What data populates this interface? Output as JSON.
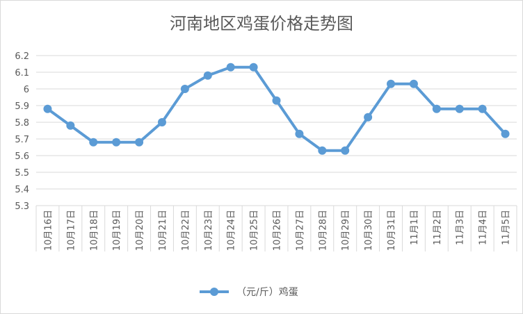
{
  "chart_data": {
    "type": "line",
    "title": "河南地区鸡蛋价格走势图",
    "categories": [
      "10月16日",
      "10月17日",
      "10月18日",
      "10月19日",
      "10月20日",
      "10月21日",
      "10月22日",
      "10月23日",
      "10月24日",
      "10月25日",
      "10月26日",
      "10月27日",
      "10月28日",
      "10月29日",
      "10月30日",
      "10月31日",
      "11月1日",
      "11月2日",
      "11月3日",
      "11月4日",
      "11月5日"
    ],
    "series": [
      {
        "name": "（元/斤）鸡蛋",
        "values": [
          5.88,
          5.78,
          5.68,
          5.68,
          5.68,
          5.8,
          6.0,
          6.08,
          6.13,
          6.13,
          5.93,
          5.73,
          5.63,
          5.63,
          5.83,
          6.03,
          6.03,
          5.88,
          5.88,
          5.88,
          5.73
        ],
        "color": "#5b9bd5"
      }
    ],
    "ylim": [
      5.3,
      6.2
    ],
    "yticks": [
      "5.3",
      "5.4",
      "5.5",
      "5.6",
      "5.7",
      "5.8",
      "5.9",
      "6",
      "6.1",
      "6.2"
    ],
    "grid": true,
    "legend": "bottom",
    "gridColor": "#d9d9d9"
  }
}
